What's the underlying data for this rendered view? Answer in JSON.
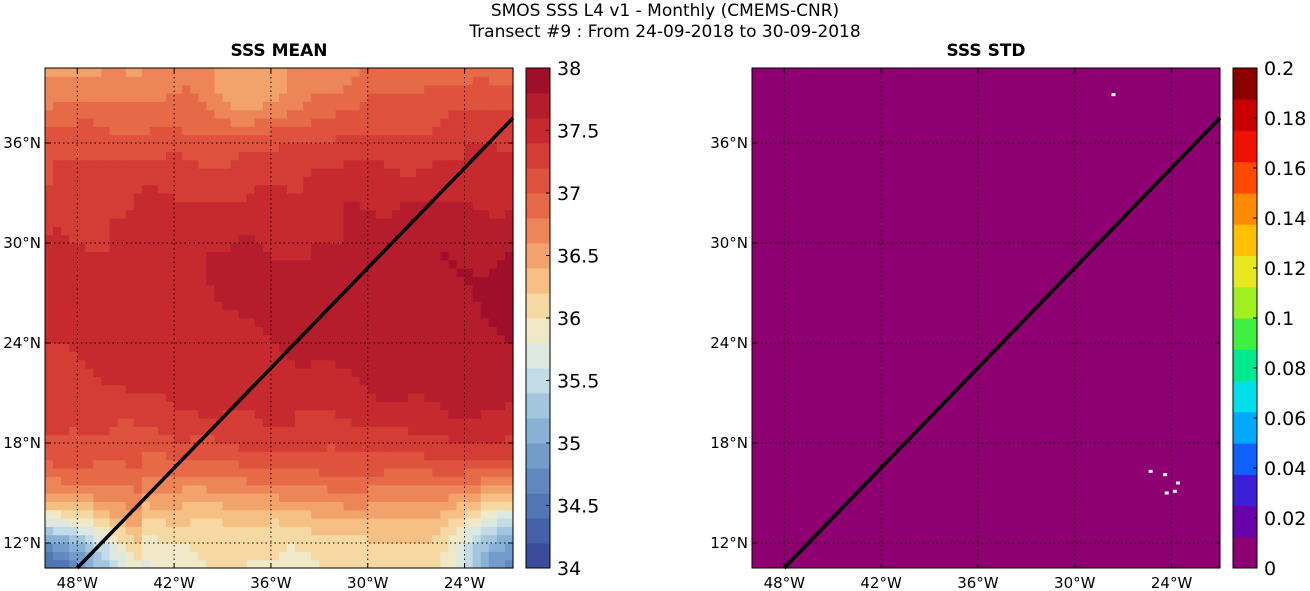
{
  "figure": {
    "title_line1": "SMOS SSS L4 v1 - Monthly (CMEMS-CNR)",
    "title_line2": "Transect #9 : From 24-09-2018 to 30-09-2018"
  },
  "chart_data": [
    {
      "type": "heatmap",
      "title": "SSS MEAN",
      "x_ticks": [
        "48°W",
        "42°W",
        "36°W",
        "30°W",
        "24°W"
      ],
      "x_tick_values": [
        -48,
        -42,
        -36,
        -30,
        -24
      ],
      "y_ticks": [
        "12°N",
        "18°N",
        "24°N",
        "30°N",
        "36°N"
      ],
      "y_tick_values": [
        12,
        18,
        24,
        30,
        36
      ],
      "xlim": [
        -50,
        -21
      ],
      "ylim": [
        10.5,
        40.5
      ],
      "grid": true,
      "colorbar": {
        "min": 34,
        "max": 38,
        "ticks": [
          34,
          34.5,
          35,
          35.5,
          36,
          36.5,
          37,
          37.5,
          38
        ],
        "tick_labels": [
          "34",
          "34.5",
          "35",
          "35.5",
          "36",
          "36.5",
          "37",
          "37.5",
          "38"
        ],
        "palette": [
          "#3b4c9c",
          "#4560a8",
          "#5276b4",
          "#6189c0",
          "#739ccb",
          "#88b1d5",
          "#a3c6de",
          "#c2dbe6",
          "#dde8e1",
          "#efe9c8",
          "#f6d8a3",
          "#f6c084",
          "#f2a36c",
          "#ec8558",
          "#e66a47",
          "#df523d",
          "#d43d35",
          "#c62a2f",
          "#b51c2c",
          "#9f0f29"
        ]
      },
      "transect": {
        "from": [
          -48,
          10.5
        ],
        "to": [
          -21,
          37.5
        ],
        "color": "#000000"
      },
      "field_description": "Sea surface salinity; ~37.5 in subtropical core 22-30N, ~36-36.5 north of 34N, fresher (34-35.5) toward the southern corners"
    },
    {
      "type": "heatmap",
      "title": "SSS STD",
      "x_ticks": [
        "48°W",
        "42°W",
        "36°W",
        "30°W",
        "24°W"
      ],
      "x_tick_values": [
        -48,
        -42,
        -36,
        -30,
        -24
      ],
      "y_ticks": [
        "12°N",
        "18°N",
        "24°N",
        "30°N",
        "36°N"
      ],
      "y_tick_values": [
        12,
        18,
        24,
        30,
        36
      ],
      "xlim": [
        -50,
        -21
      ],
      "ylim": [
        10.5,
        40.5
      ],
      "grid": true,
      "field_value": 0,
      "field_color": "#8e0071",
      "colorbar": {
        "min": 0,
        "max": 0.2,
        "ticks": [
          0,
          0.02,
          0.04,
          0.06,
          0.08,
          0.1,
          0.12,
          0.14,
          0.16,
          0.18,
          0.2
        ],
        "tick_labels": [
          "0",
          "0.02",
          "0.04",
          "0.06",
          "0.08",
          "0.1",
          "0.12",
          "0.14",
          "0.16",
          "0.18",
          "0.2"
        ],
        "palette": [
          "#8e0071",
          "#6a00a8",
          "#3a1fd6",
          "#1060ff",
          "#00a8ff",
          "#00e0e8",
          "#00e890",
          "#40f040",
          "#a0f020",
          "#e8e820",
          "#ffc000",
          "#ff8a00",
          "#ff4800",
          "#f01000",
          "#c80000",
          "#8c0000"
        ]
      },
      "transect": {
        "from": [
          -48,
          10.5
        ],
        "to": [
          -21,
          37.5
        ],
        "color": "#000000"
      },
      "missing_points": [
        [
          -27.6,
          38.9
        ],
        [
          -25.3,
          16.3
        ],
        [
          -24.4,
          16.1
        ],
        [
          -23.6,
          15.6
        ],
        [
          -24.3,
          15.0
        ],
        [
          -23.8,
          15.1
        ]
      ]
    }
  ]
}
